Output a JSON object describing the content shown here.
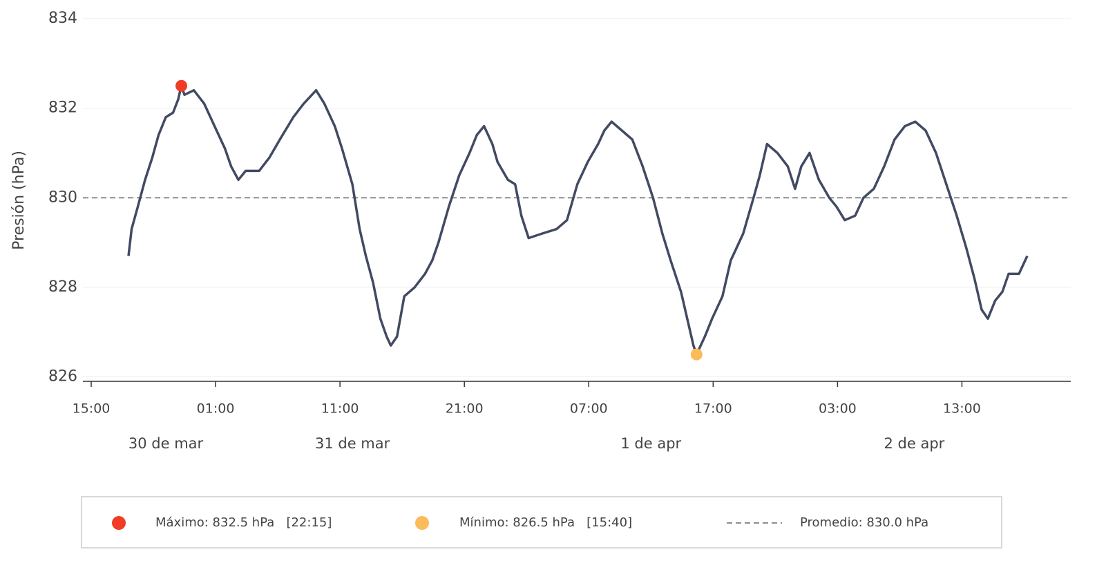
{
  "chart_data": {
    "type": "line",
    "y_label": "Presión (hPa)",
    "ylim": [
      825.9,
      834
    ],
    "yticks": [
      826,
      828,
      830,
      832,
      834
    ],
    "grid": true,
    "xlim": [
      "03-30T15:00",
      "04-02T21:45"
    ],
    "xticks": [
      {
        "value": "03-30T15:00",
        "label": "15:00"
      },
      {
        "value": "03-31T01:00",
        "label": "01:00"
      },
      {
        "value": "03-31T11:00",
        "label": "11:00"
      },
      {
        "value": "03-31T21:00",
        "label": "21:00"
      },
      {
        "value": "04-01T07:00",
        "label": "07:00"
      },
      {
        "value": "04-01T17:00",
        "label": "17:00"
      },
      {
        "value": "04-02T03:00",
        "label": "03:00"
      },
      {
        "value": "04-02T13:00",
        "label": "13:00"
      }
    ],
    "day_labels": [
      {
        "x": "03-30T21:00",
        "label": "30 de mar"
      },
      {
        "x": "03-31T12:00",
        "label": "31 de mar"
      },
      {
        "x": "04-01T12:00",
        "label": "1 de apr"
      },
      {
        "x": "04-02T09:10",
        "label": "2 de apr"
      }
    ],
    "series": [
      {
        "color": "#424a63",
        "x": [
          "03-30T18:00",
          "03-30T18:15",
          "03-30T18:45",
          "03-30T19:20",
          "03-30T19:55",
          "03-30T20:25",
          "03-30T21:00",
          "03-30T21:35",
          "03-30T22:00",
          "03-30T22:15",
          "03-30T22:30",
          "03-30T23:15",
          "03-31T00:05",
          "03-31T00:55",
          "03-31T01:45",
          "03-31T02:15",
          "03-31T02:50",
          "03-31T03:25",
          "03-31T04:30",
          "03-31T05:20",
          "03-31T06:10",
          "03-31T07:15",
          "03-31T08:05",
          "03-31T09:05",
          "03-31T09:45",
          "03-31T10:35",
          "03-31T11:10",
          "03-31T12:00",
          "03-31T12:35",
          "03-31T13:05",
          "03-31T13:40",
          "03-31T14:15",
          "03-31T14:45",
          "03-31T15:05",
          "03-31T15:35",
          "03-31T16:10",
          "03-31T17:00",
          "03-31T17:50",
          "03-31T18:25",
          "03-31T18:55",
          "03-31T19:45",
          "03-31T20:35",
          "03-31T21:25",
          "03-31T22:00",
          "03-31T22:35",
          "03-31T23:15",
          "03-31T23:40",
          "04-01T00:30",
          "04-01T01:05",
          "04-01T01:35",
          "04-01T02:10",
          "04-01T03:15",
          "04-01T04:25",
          "04-01T05:15",
          "04-01T06:05",
          "04-01T06:55",
          "04-01T07:45",
          "04-01T08:15",
          "04-01T08:50",
          "04-01T09:40",
          "04-01T10:30",
          "04-01T11:20",
          "04-01T12:10",
          "04-01T12:55",
          "04-01T13:35",
          "04-01T14:25",
          "04-01T14:55",
          "04-01T15:25",
          "04-01T15:40",
          "04-01T16:20",
          "04-01T16:55",
          "04-01T17:45",
          "04-01T18:25",
          "04-01T19:25",
          "04-01T20:15",
          "04-01T20:45",
          "04-01T21:20",
          "04-01T22:10",
          "04-01T23:00",
          "04-01T23:35",
          "04-02T00:05",
          "04-02T00:45",
          "04-02T01:30",
          "04-02T02:20",
          "04-02T02:55",
          "04-02T03:35",
          "04-02T04:25",
          "04-02T05:05",
          "04-02T05:55",
          "04-02T06:45",
          "04-02T07:35",
          "04-02T08:25",
          "04-02T09:15",
          "04-02T10:05",
          "04-02T10:55",
          "04-02T11:45",
          "04-02T12:35",
          "04-02T13:20",
          "04-02T14:00",
          "04-02T14:35",
          "04-02T15:05",
          "04-02T15:40",
          "04-02T16:15",
          "04-02T16:45",
          "04-02T17:35",
          "04-02T18:15"
        ],
        "values": [
          828.7,
          829.3,
          829.8,
          830.4,
          830.9,
          831.4,
          831.8,
          831.9,
          832.2,
          832.5,
          832.3,
          832.4,
          832.1,
          831.6,
          831.1,
          830.7,
          830.4,
          830.6,
          830.6,
          830.9,
          831.3,
          831.8,
          832.1,
          832.4,
          832.1,
          831.6,
          831.1,
          830.3,
          829.3,
          828.7,
          828.1,
          827.3,
          826.9,
          826.7,
          826.9,
          827.8,
          828.0,
          828.3,
          828.6,
          829.0,
          829.8,
          830.5,
          831.0,
          831.4,
          831.6,
          831.2,
          830.8,
          830.4,
          830.3,
          829.6,
          829.1,
          829.2,
          829.3,
          829.5,
          830.3,
          830.8,
          831.2,
          831.5,
          831.7,
          831.5,
          831.3,
          830.7,
          830.0,
          829.2,
          828.6,
          827.9,
          827.3,
          826.7,
          826.5,
          826.9,
          827.3,
          827.8,
          828.6,
          829.2,
          830.0,
          830.5,
          831.2,
          831.0,
          830.7,
          830.2,
          830.7,
          831.0,
          830.4,
          830.0,
          829.8,
          829.5,
          829.6,
          830.0,
          830.2,
          830.7,
          831.3,
          831.6,
          831.7,
          831.5,
          831.0,
          830.3,
          829.6,
          828.9,
          828.2,
          827.5,
          827.3,
          827.7,
          827.9,
          828.3,
          828.3,
          828.7
        ]
      }
    ],
    "max": {
      "x": "03-30T22:15",
      "value": 832.5,
      "color": "#f03c24",
      "label": "Máximo: 832.5 hPa   [22:15]"
    },
    "min": {
      "x": "04-01T15:40",
      "value": 826.5,
      "color": "#fbbb5b",
      "label": "Mínimo: 826.5 hPa   [15:40]"
    },
    "average": {
      "value": 830.0,
      "color": "#8e8e8e",
      "label": "Promedio: 830.0 hPa"
    }
  }
}
